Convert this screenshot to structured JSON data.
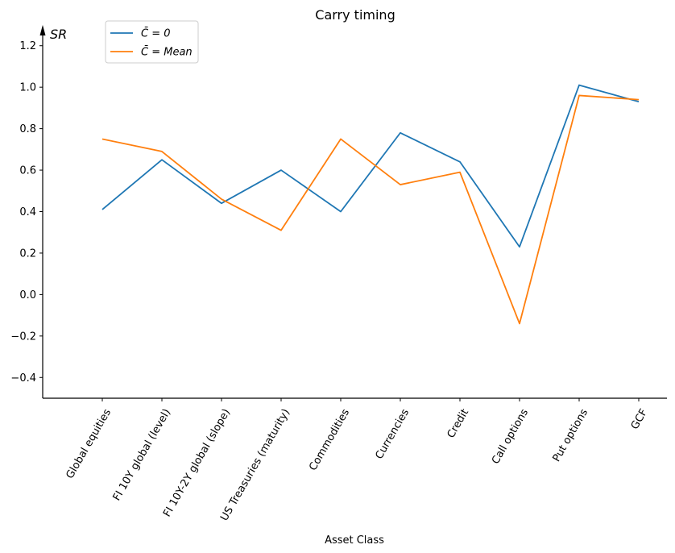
{
  "chart_data": {
    "type": "line",
    "title": "Carry timing",
    "xlabel": "Asset Class",
    "ylabel": "SR",
    "categories": [
      "Global equities",
      "FI 10Y global (level)",
      "FI 10Y-2Y global (slope)",
      "US Treasuries (maturity)",
      "Commodities",
      "Currencies",
      "Credit",
      "Call options",
      "Put options",
      "GCF"
    ],
    "series": [
      {
        "name": "C̄ = 0",
        "color": "#1f77b4",
        "values": [
          0.41,
          0.65,
          0.44,
          0.6,
          0.4,
          0.78,
          0.64,
          0.23,
          1.01,
          0.93
        ]
      },
      {
        "name": "C̄ = Mean",
        "color": "#ff7f0e",
        "values": [
          0.75,
          0.69,
          0.46,
          0.31,
          0.75,
          0.53,
          0.59,
          -0.14,
          0.96,
          0.94
        ]
      }
    ],
    "ylim": [
      -0.5,
      1.3
    ],
    "yticks": [
      -0.4,
      -0.2,
      0.0,
      0.2,
      0.4,
      0.6,
      0.8,
      1.0,
      1.2
    ],
    "yticks_text": [
      "−0.4",
      "−0.2",
      "0.0",
      "0.2",
      "0.4",
      "0.6",
      "0.8",
      "1.0",
      "1.2"
    ],
    "grid": false,
    "legend_position": "top-left"
  }
}
